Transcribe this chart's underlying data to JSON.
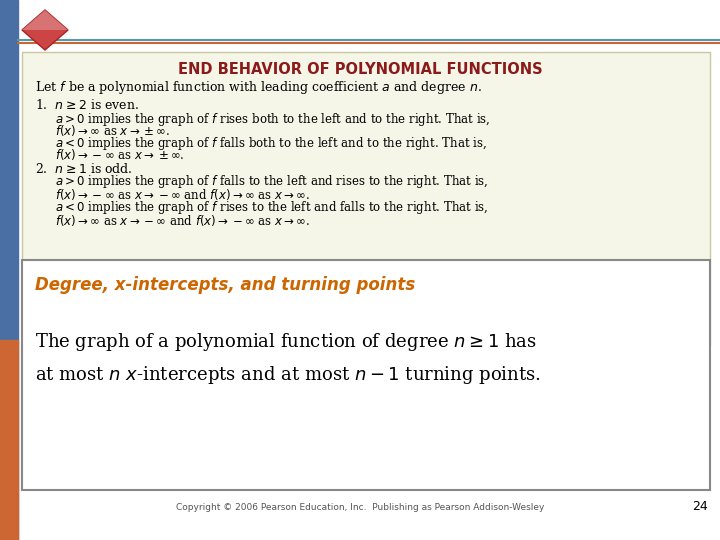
{
  "bg_color": "#ffffff",
  "slide_bg": "#ffffff",
  "top_box_bg": "#f5f5e8",
  "top_box_border": "#c8c8a0",
  "bottom_box_bg": "#ffffff",
  "bottom_box_border": "#888888",
  "left_bar_colors": [
    "#4a6fa5",
    "#cc6633"
  ],
  "diamond_colors": [
    "#cc4444",
    "#aa3333",
    "#bb8888"
  ],
  "title_color": "#8b1a1a",
  "title_text": "END BEHAVIOR OF POLYNOMIAL FUNCTIONS",
  "heading_color": "#cc6600",
  "heading_text": "Degree, x-intercepts, and turning points",
  "copyright_text": "Copyright © 2006 Pearson Education, Inc.  Publishing as Pearson Addison-Wesley",
  "page_number": "24",
  "top_line_color": "#5599aa",
  "top_line_color2": "#cc6633"
}
